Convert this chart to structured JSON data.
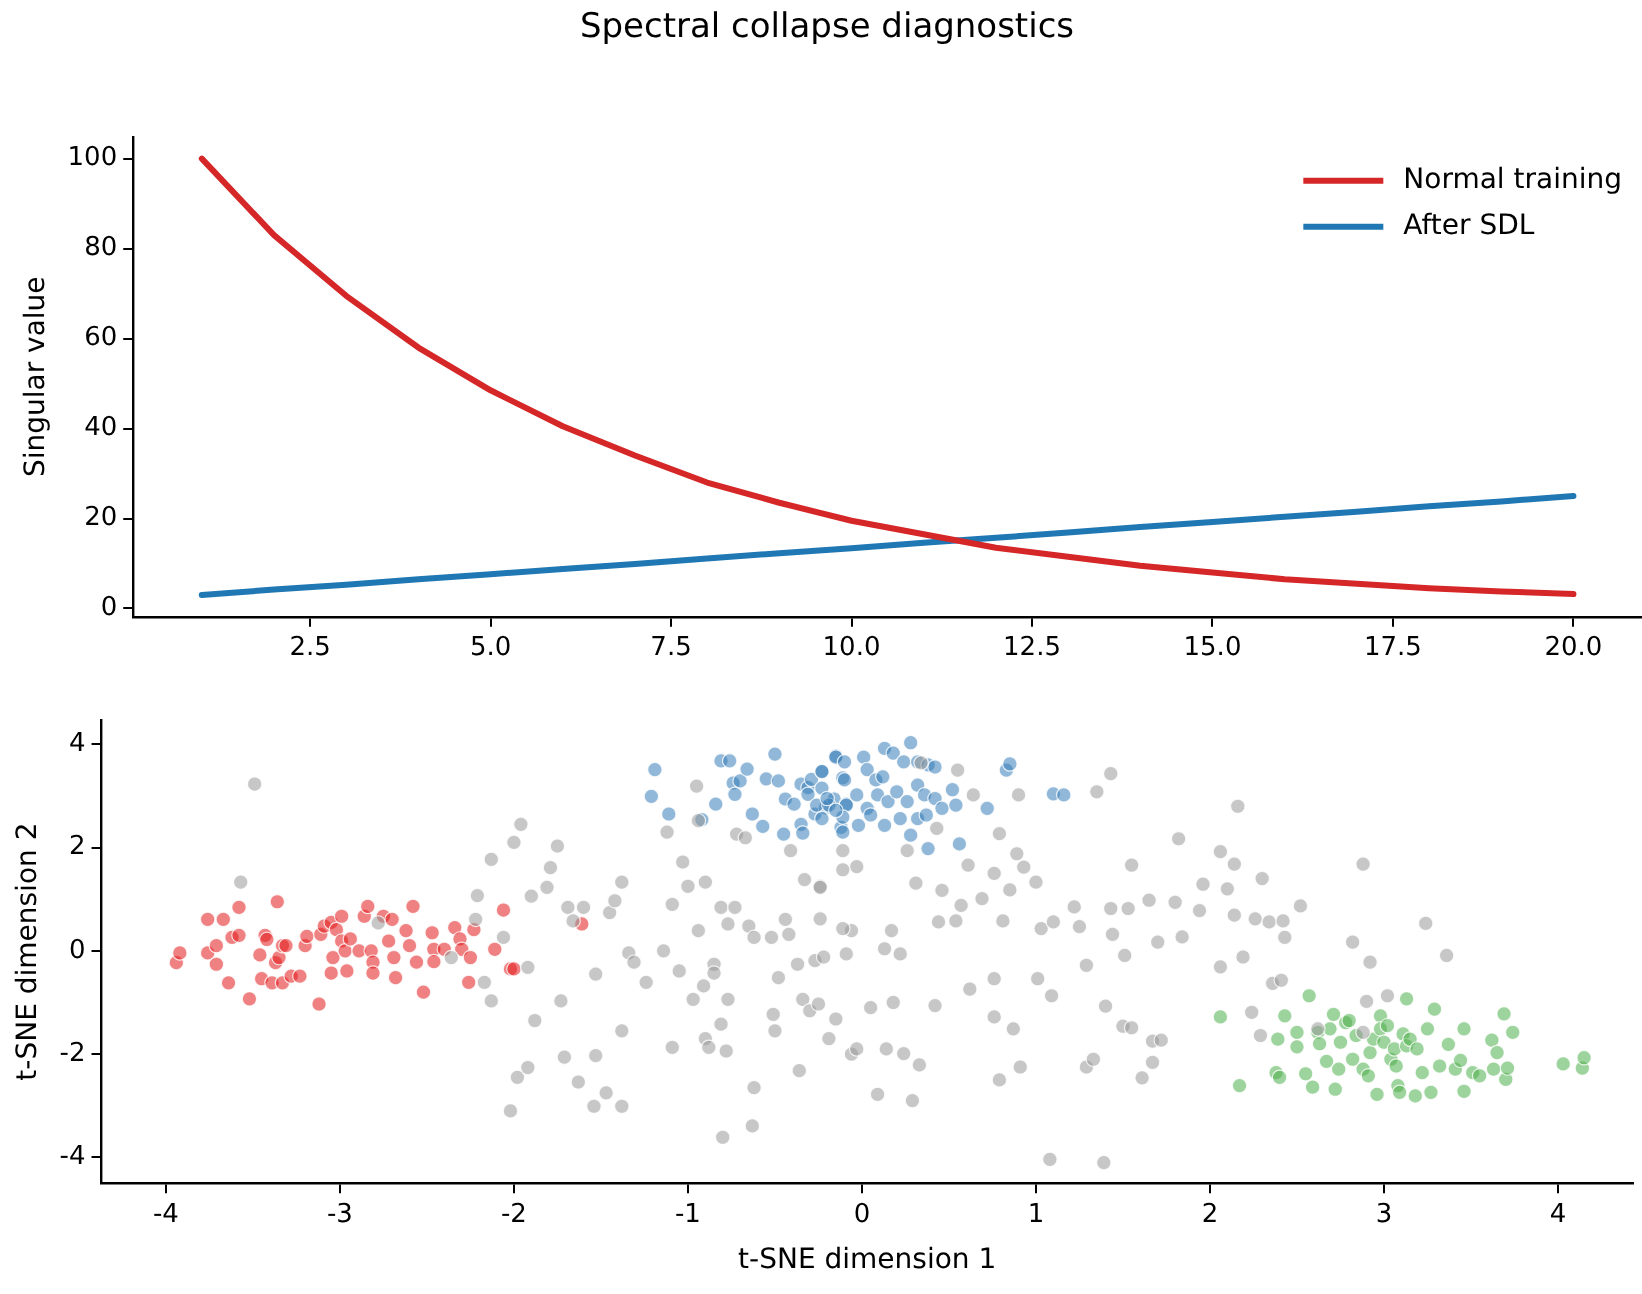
{
  "chart_data": [
    {
      "type": "line",
      "title": "Spectral collapse diagnostics",
      "ylabel": "Singular value",
      "x": [
        1,
        2,
        3,
        4,
        5,
        6,
        7,
        8,
        9,
        10,
        11,
        12,
        13,
        14,
        15,
        16,
        17,
        18,
        19,
        20
      ],
      "xlim": [
        0.05,
        20.95
      ],
      "ylim": [
        -1.85,
        104.85
      ],
      "xticks": [
        {
          "value": 2.5,
          "label": "2.5"
        },
        {
          "value": 5,
          "label": "5.0"
        },
        {
          "value": 7.5,
          "label": "7.5"
        },
        {
          "value": 10,
          "label": "10.0"
        },
        {
          "value": 12.5,
          "label": "12.5"
        },
        {
          "value": 15,
          "label": "15.0"
        },
        {
          "value": 17.5,
          "label": "17.5"
        },
        {
          "value": 20,
          "label": "20.0"
        }
      ],
      "yticks": [
        0,
        20,
        40,
        60,
        80,
        100
      ],
      "legend": "top right",
      "marker": "none",
      "line_style": "solid",
      "series": [
        {
          "name": "Normal training",
          "color": "#d62728",
          "values": [
            100,
            83,
            69.5,
            58,
            48.5,
            40.5,
            34,
            28,
            23.5,
            19.5,
            16.5,
            13.5,
            11.5,
            9.5,
            8,
            6.5,
            5.5,
            4.5,
            3.8,
            3.2
          ]
        },
        {
          "name": "After SDL",
          "color": "#1f77b4",
          "values": [
            3,
            4.2,
            5.3,
            6.5,
            7.6,
            8.8,
            9.9,
            11.1,
            12.3,
            13.4,
            14.6,
            15.7,
            16.9,
            18.1,
            19.2,
            20.4,
            21.5,
            22.7,
            23.8,
            25
          ]
        }
      ]
    },
    {
      "type": "scatter",
      "xlabel": "t-SNE dimension 1",
      "ylabel": "t-SNE dimension 2",
      "xlim": [
        -4.37,
        4.43
      ],
      "ylim": [
        -4.5,
        4.47
      ],
      "xticks": [
        -4,
        -3,
        -2,
        -1,
        0,
        1,
        2,
        3,
        4
      ],
      "yticks": [
        -4,
        -2,
        0,
        2,
        4
      ],
      "legend": false,
      "marker": "circle",
      "series": [
        {
          "color": "#999999",
          "x": [
            -3.49,
            -3.57,
            -2.78,
            -2.36,
            -2.17,
            -2.13,
            -2.21,
            -2.22,
            -2.06,
            -2.13,
            -2.0,
            -1.96,
            -1.9,
            -1.92,
            -1.88,
            -1.98,
            -1.92,
            -2.02,
            -1.81,
            -1.79,
            -1.75,
            -1.73,
            -1.71,
            -1.69,
            -1.66,
            -1.63,
            -1.6,
            -1.53,
            -1.53,
            -1.54,
            -1.47,
            -1.45,
            -1.42,
            -1.38,
            -1.38,
            -1.38,
            -1.34,
            -1.31,
            -1.24,
            -1.14,
            -1.12,
            -1.09,
            -1.09,
            -1.05,
            -1.03,
            -1.0,
            -0.97,
            -0.95,
            -0.94,
            -0.94,
            -0.91,
            -0.9,
            -0.9,
            -0.88,
            -0.85,
            -0.85,
            -0.81,
            -0.81,
            -0.8,
            -0.78,
            -0.77,
            -0.77,
            -0.73,
            -0.72,
            -0.67,
            -0.65,
            -0.63,
            -0.62,
            -0.62,
            -0.52,
            -0.51,
            -0.5,
            -0.48,
            -0.44,
            -0.42,
            -0.41,
            -0.37,
            -0.36,
            -0.34,
            -0.33,
            -0.3,
            -0.27,
            -0.25,
            -0.24,
            -0.19,
            -0.11,
            -0.06,
            -0.06,
            0.34,
            0.55,
            0.64,
            0.9,
            1.43,
            1.35,
            2.16,
            1.82,
            0.79,
            0.43,
            0.26,
            0.89,
            0.61,
            0.76,
            0.93,
            1.0,
            1.55,
            2.06,
            2.14,
            2.3,
            2.88,
            2.1,
            1.96,
            0.31,
            -0.03,
            -0.11,
            -0.24,
            0.46,
            0.57,
            0.69,
            0.85,
            1.22,
            1.25,
            1.43,
            1.53,
            1.65,
            1.8,
            1.94,
            2.14,
            2.26,
            2.34,
            2.42,
            2.52,
            2.43,
            2.82,
            3.24,
            3.36,
            2.92,
            2.19,
            2.06,
            1.84,
            1.7,
            1.51,
            1.29,
            1.01,
            0.76,
            0.62,
            0.42,
            0.18,
            0.05,
            -0.15,
            -0.03,
            0.14,
            0.24,
            0.33,
            0.79,
            0.91,
            0.87,
            0.76,
            1.09,
            1.29,
            1.33,
            1.4,
            1.5,
            1.55,
            1.67,
            1.72,
            1.61,
            1.67,
            2.24,
            2.29,
            2.36,
            2.41,
            2.62,
            2.88,
            2.9,
            3.02,
            0.09,
            0.29,
            1.08,
            1.39,
            -0.24,
            -0.11,
            0.17,
            0.44,
            0.54,
            0.81,
            1.03,
            1.1,
            1.44,
            -0.22,
            -0.09,
            0.13,
            0.22
          ],
          "values": [
            3.23,
            1.33,
            0.54,
            -0.13,
            -0.61,
            -0.97,
            1.07,
            0.61,
            0.26,
            1.77,
            2.1,
            2.45,
            1.06,
            -0.32,
            -1.35,
            -2.45,
            -2.26,
            -3.1,
            1.23,
            1.61,
            2.03,
            -0.97,
            -2.06,
            0.84,
            0.58,
            -2.54,
            0.84,
            -2.03,
            -0.45,
            -3.01,
            -2.75,
            0.74,
            0.97,
            1.33,
            -1.55,
            -3.01,
            -0.04,
            -0.22,
            -0.61,
            0.0,
            2.3,
            0.9,
            -1.87,
            -0.39,
            1.72,
            1.25,
            -0.94,
            3.19,
            2.52,
            0.39,
            -0.68,
            1.33,
            -1.7,
            -1.87,
            -0.26,
            -0.43,
            -1.42,
            0.84,
            -3.61,
            -1.94,
            -0.94,
            0.52,
            0.84,
            2.26,
            2.19,
            0.48,
            -3.39,
            -2.65,
            0.26,
            0.26,
            -1.23,
            -1.55,
            -0.52,
            0.61,
            0.32,
            1.94,
            -0.26,
            -2.32,
            -0.94,
            1.38,
            -1.16,
            -0.19,
            -1.03,
            1.25,
            -1.7,
            1.94,
            -2.0,
            0.39,
            3.64,
            3.5,
            3.02,
            3.02,
            3.43,
            3.08,
            2.8,
            2.17,
            2.27,
            2.37,
            1.94,
            1.88,
            1.66,
            1.5,
            1.62,
            1.33,
            1.66,
            1.92,
            1.68,
            1.4,
            1.68,
            1.2,
            1.29,
            1.31,
            1.63,
            1.57,
            1.23,
            1.17,
            0.88,
            1.01,
            1.18,
            0.85,
            0.47,
            0.82,
            0.82,
            0.98,
            0.94,
            0.78,
            0.69,
            0.62,
            0.56,
            0.58,
            0.87,
            0.26,
            0.17,
            0.53,
            -0.09,
            -0.22,
            -0.12,
            -0.31,
            0.27,
            0.17,
            -0.09,
            -0.28,
            -0.54,
            -0.54,
            -0.74,
            -1.06,
            -1.0,
            -1.1,
            -1.32,
            -1.9,
            -1.9,
            -1.99,
            -2.21,
            -2.5,
            -2.25,
            -1.51,
            -1.28,
            -0.87,
            -2.25,
            -2.1,
            -1.07,
            -1.46,
            -1.49,
            -1.75,
            -1.73,
            -2.46,
            -2.16,
            -1.19,
            -1.64,
            -0.63,
            -0.57,
            -1.51,
            -1.58,
            -0.98,
            -0.87,
            -2.78,
            -2.9,
            -4.04,
            -4.1,
            0.62,
            0.43,
            0.39,
            0.56,
            0.58,
            0.58,
            0.43,
            0.56,
            0.32,
            -0.12,
            -0.06,
            0.04,
            -0.06
          ]
        },
        {
          "color": "#e41a1c",
          "x": [
            -3.94,
            -3.92,
            -3.76,
            -3.67,
            -3.58,
            -3.36,
            -3.76,
            -3.71,
            -3.71,
            -3.64,
            -3.62,
            -3.58,
            -3.52,
            -3.46,
            -3.43,
            -3.42,
            -3.37,
            -3.35,
            -3.33,
            -3.31,
            -3.45,
            -3.39,
            -3.33,
            -3.28,
            -3.23,
            -3.2,
            -3.19,
            -3.12,
            -3.11,
            -3.09,
            -3.05,
            -3.02,
            -3.04,
            -2.99,
            -2.99,
            -2.97,
            -2.94,
            -3.05,
            -2.96,
            -2.89,
            -2.86,
            -2.84,
            -2.82,
            -2.81,
            -2.81,
            -2.75,
            -2.72,
            -2.7,
            -2.69,
            -2.68,
            -2.62,
            -2.6,
            -2.58,
            -2.56,
            -2.52,
            -2.47,
            -2.46,
            -2.46,
            -2.4,
            -2.34,
            -2.31,
            -2.3,
            -2.25,
            -2.23,
            -2.26,
            -2.11,
            -2.06,
            -2.02,
            -2.0,
            -1.61
          ],
          "values": [
            -0.23,
            -0.04,
            0.61,
            0.61,
            0.84,
            0.95,
            -0.04,
            0.1,
            -0.26,
            -0.62,
            0.26,
            0.3,
            -0.93,
            -0.08,
            0.3,
            0.22,
            -0.23,
            -0.13,
            0.1,
            0.1,
            -0.54,
            -0.62,
            -0.62,
            -0.49,
            -0.49,
            0.1,
            0.28,
            -1.03,
            0.32,
            0.48,
            0.55,
            0.41,
            -0.13,
            0.67,
            0.19,
            0.0,
            0.23,
            -0.43,
            -0.39,
            0.0,
            0.67,
            0.86,
            0.0,
            -0.22,
            -0.43,
            0.67,
            0.19,
            0.61,
            -0.13,
            -0.52,
            0.39,
            0.1,
            0.86,
            -0.22,
            -0.8,
            0.35,
            0.03,
            -0.21,
            0.03,
            0.45,
            0.23,
            0.03,
            -0.13,
            0.41,
            -0.61,
            0.03,
            0.79,
            -0.35,
            -0.35,
            0.52
          ]
        },
        {
          "color": "#377eb8",
          "x": [
            -1.19,
            -1.21,
            -1.11,
            -0.92,
            -0.84,
            -0.81,
            -0.76,
            -0.74,
            -0.7,
            -0.73,
            -0.66,
            -0.63,
            -0.57,
            -0.55,
            -0.5,
            -0.48,
            -0.44,
            -0.39,
            -0.35,
            -0.35,
            -0.34,
            -0.45,
            -0.31,
            -0.31,
            -0.29,
            -0.27,
            -0.23,
            -0.21,
            -0.15,
            -0.12,
            -0.16,
            -0.11,
            -0.09,
            -0.23,
            -0.15,
            -0.1,
            0.01,
            0.13,
            0.18,
            0.24,
            0.28,
            0.32,
            0.38,
            0.42,
            0.03,
            0.08,
            0.12,
            -0.1,
            -0.23,
            -0.26,
            -0.19,
            -0.09,
            -0.03,
            0.03,
            0.09,
            0.15,
            0.2,
            0.26,
            0.32,
            0.36,
            0.42,
            0.46,
            0.52,
            0.54,
            -0.23,
            -0.11,
            -0.11,
            -0.02,
            0.05,
            0.13,
            0.22,
            0.28,
            0.32,
            0.37,
            0.38,
            0.56,
            0.72,
            0.83,
            0.85,
            1.1,
            1.16,
            -0.15,
            -0.2
          ],
          "values": [
            3.51,
            2.99,
            2.65,
            2.54,
            2.84,
            3.68,
            3.68,
            3.25,
            3.29,
            3.03,
            3.52,
            2.65,
            2.41,
            3.33,
            3.81,
            3.29,
            2.94,
            2.84,
            3.23,
            2.45,
            2.28,
            2.26,
            3.16,
            3.03,
            3.32,
            2.65,
            3.48,
            2.77,
            3.77,
            2.39,
            2.94,
            3.35,
            2.84,
            3.47,
            3.75,
            3.66,
            3.75,
            3.92,
            3.83,
            3.66,
            4.03,
            3.66,
            3.6,
            3.56,
            3.51,
            3.31,
            3.37,
            3.31,
            3.15,
            2.82,
            2.82,
            2.82,
            3.02,
            2.76,
            3.02,
            2.89,
            3.08,
            2.89,
            3.21,
            3.02,
            2.95,
            2.76,
            3.12,
            2.82,
            2.56,
            2.59,
            2.3,
            2.43,
            2.63,
            2.43,
            2.56,
            2.24,
            2.56,
            2.63,
            1.98,
            2.07,
            2.76,
            3.5,
            3.62,
            3.04,
            3.02,
            2.72,
            2.95
          ]
        },
        {
          "color": "#4daf4a",
          "x": [
            2.06,
            2.17,
            2.43,
            2.39,
            2.38,
            2.4,
            2.5,
            2.5,
            2.55,
            2.57,
            2.59,
            2.62,
            2.63,
            2.67,
            2.69,
            2.71,
            2.72,
            2.74,
            2.75,
            2.78,
            2.8,
            2.82,
            2.84,
            2.88,
            2.91,
            2.92,
            2.94,
            2.96,
            2.98,
            2.98,
            3.0,
            3.02,
            3.04,
            3.06,
            3.07,
            3.08,
            3.09,
            3.11,
            3.13,
            3.13,
            3.15,
            3.18,
            3.19,
            3.22,
            3.25,
            3.27,
            3.29,
            3.32,
            3.37,
            3.41,
            3.44,
            3.46,
            3.46,
            3.51,
            3.55,
            3.62,
            3.63,
            3.65,
            3.69,
            3.7,
            3.71,
            3.74,
            4.03,
            4.14,
            4.15
          ],
          "values": [
            -1.28,
            -2.61,
            -1.26,
            -1.71,
            -2.36,
            -2.45,
            -1.58,
            -1.86,
            -2.38,
            -0.87,
            -2.64,
            -1.58,
            -1.8,
            -2.14,
            -1.51,
            -1.23,
            -2.68,
            -2.29,
            -1.77,
            -1.39,
            -1.35,
            -2.1,
            -1.64,
            -2.29,
            -2.42,
            -1.97,
            -1.71,
            -2.78,
            -1.26,
            -1.51,
            -1.77,
            -1.45,
            -2.1,
            -1.9,
            -2.23,
            -2.61,
            -2.74,
            -1.61,
            -0.93,
            -1.84,
            -1.71,
            -2.81,
            -1.9,
            -2.36,
            -1.51,
            -2.74,
            -1.13,
            -2.23,
            -1.81,
            -2.29,
            -2.12,
            -1.51,
            -2.72,
            -2.36,
            -2.42,
            -1.73,
            -2.29,
            -1.97,
            -1.22,
            -2.49,
            -2.27,
            -1.58,
            -2.19,
            -2.27,
            -2.07
          ]
        }
      ]
    }
  ]
}
